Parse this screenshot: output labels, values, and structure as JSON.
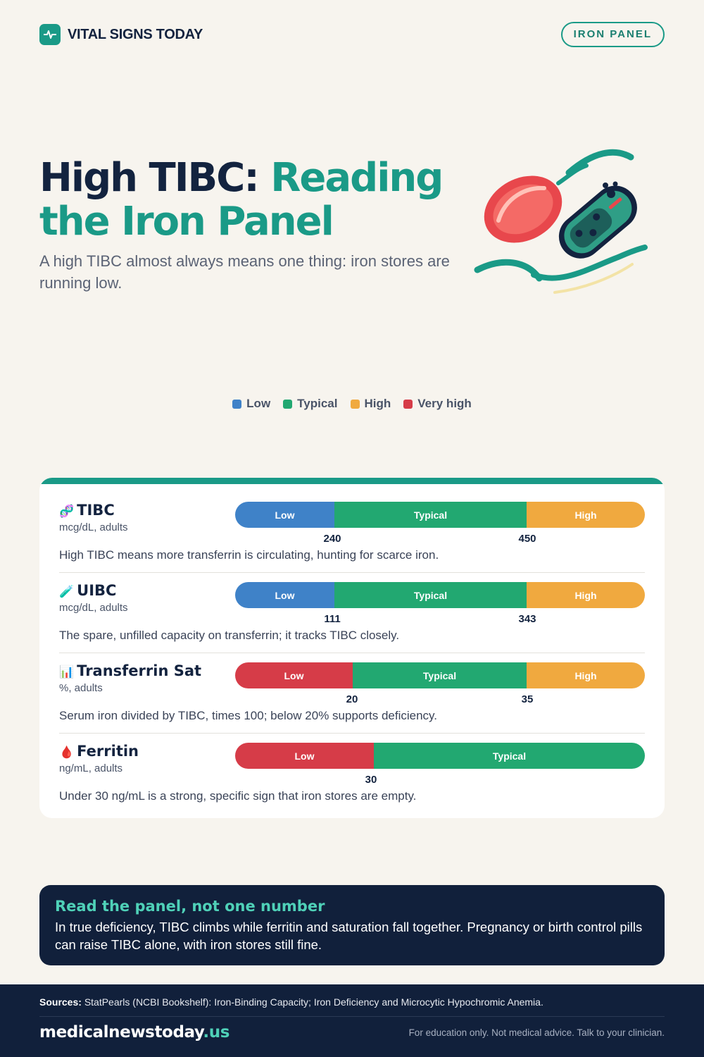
{
  "header": {
    "brand": "VITAL SIGNS TODAY",
    "brand_icon": "pulse-icon",
    "badge": "IRON PANEL"
  },
  "hero": {
    "title_part1": "High TIBC: ",
    "title_part2": "Reading the Iron Panel",
    "subtitle": "A high TIBC almost always means one thing: iron stores are running low.",
    "illustration": "red-blood-cell-and-pill-illustration"
  },
  "colors": {
    "accent": "#1a9a87",
    "low_blue": "#3f82c8",
    "typical_green": "#22a871",
    "high_amber": "#f0a93f",
    "very_high_red": "#d63c48",
    "navy": "#11203b"
  },
  "legend": [
    {
      "label": "Low",
      "color": "#3f82c8"
    },
    {
      "label": "Typical",
      "color": "#22a871"
    },
    {
      "label": "High",
      "color": "#f0a93f"
    },
    {
      "label": "Very high",
      "color": "#d63c48"
    }
  ],
  "tests": [
    {
      "icon": "🧬",
      "name": "TIBC",
      "unit": "mcg/dL, adults",
      "segments": [
        {
          "label": "Low",
          "color": "#3f82c8"
        },
        {
          "label": "Typical",
          "color": "#22a871"
        },
        {
          "label": "High",
          "color": "#f0a93f"
        }
      ],
      "thresholds": [
        "240",
        "450"
      ],
      "note": "High TIBC means more transferrin is circulating, hunting for scarce iron."
    },
    {
      "icon": "🧪",
      "name": "UIBC",
      "unit": "mcg/dL, adults",
      "segments": [
        {
          "label": "Low",
          "color": "#3f82c8"
        },
        {
          "label": "Typical",
          "color": "#22a871"
        },
        {
          "label": "High",
          "color": "#f0a93f"
        }
      ],
      "thresholds": [
        "111",
        "343"
      ],
      "note": "The spare, unfilled capacity on transferrin; it tracks TIBC closely."
    },
    {
      "icon": "📊",
      "name": "Transferrin Sat",
      "unit": "%, adults",
      "segments": [
        {
          "label": "Low",
          "color": "#d63c48"
        },
        {
          "label": "Typical",
          "color": "#22a871"
        },
        {
          "label": "High",
          "color": "#f0a93f"
        }
      ],
      "thresholds": [
        "20",
        "35"
      ],
      "note": "Serum iron divided by TIBC, times 100; below 20% supports deficiency."
    },
    {
      "icon": "🩸",
      "name": "Ferritin",
      "unit": "ng/mL, adults",
      "segments": [
        {
          "label": "Low",
          "color": "#d63c48"
        },
        {
          "label": "Typical",
          "color": "#22a871"
        }
      ],
      "thresholds": [
        "30"
      ],
      "note": "Under 30 ng/mL is a strong, specific sign that iron stores are empty."
    }
  ],
  "callout": {
    "title": "Read the panel, not one number",
    "body": "In true deficiency, TIBC climbs while ferritin and saturation fall together. Pregnancy or birth control pills can raise TIBC alone, with iron stores still fine."
  },
  "footer": {
    "sources_label": "Sources:",
    "sources_text": "StatPearls (NCBI Bookshelf): Iron-Binding Capacity; Iron Deficiency and Microcytic Hypochromic Anemia.",
    "site_name": "medicalnewstoday",
    "site_tld": ".us",
    "disclaimer": "For education only. Not medical advice. Talk to your clinician."
  }
}
